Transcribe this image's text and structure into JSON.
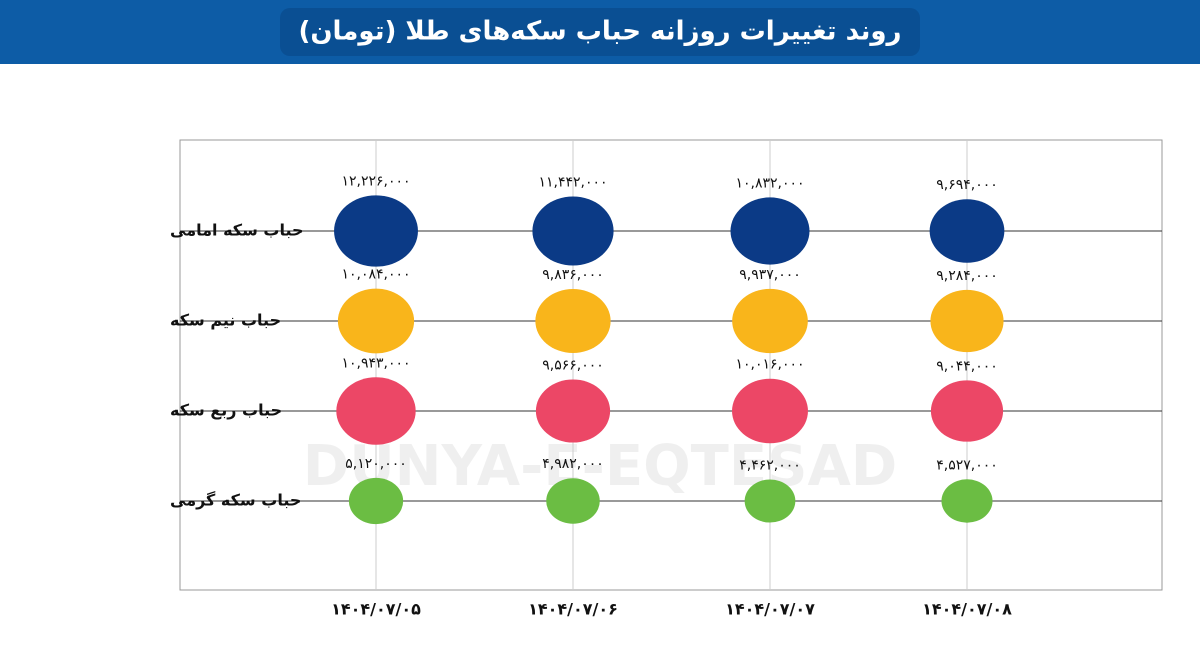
{
  "chart_data": {
    "type": "bubble",
    "title": "روند تغییرات روزانه حباب سکه‌های طلا (تومان)",
    "watermark": "DUNYA-E-EQTESAD",
    "categories": [
      "۱۴۰۴/۰۷/۰۵",
      "۱۴۰۴/۰۷/۰۶",
      "۱۴۰۴/۰۷/۰۷",
      "۱۴۰۴/۰۷/۰۸"
    ],
    "series": [
      {
        "name": "حباب سکه امامی",
        "color": "#0b3a86",
        "values": [
          12226000,
          11442000,
          10832000,
          9694000
        ],
        "value_labels": [
          "۱۲,۲۲۶,۰۰۰",
          "۱۱,۴۴۲,۰۰۰",
          "۱۰,۸۳۲,۰۰۰",
          "۹,۶۹۴,۰۰۰"
        ]
      },
      {
        "name": "حباب نیم سکه",
        "color": "#f9b51b",
        "values": [
          10084000,
          9836000,
          9937000,
          9284000
        ],
        "value_labels": [
          "۱۰,۰۸۴,۰۰۰",
          "۹,۸۳۶,۰۰۰",
          "۹,۹۳۷,۰۰۰",
          "۹,۲۸۴,۰۰۰"
        ]
      },
      {
        "name": "حباب ربع سکه",
        "color": "#ec4766",
        "values": [
          10943000,
          9566000,
          10016000,
          9044000
        ],
        "value_labels": [
          "۱۰,۹۴۳,۰۰۰",
          "۹,۵۶۶,۰۰۰",
          "۱۰,۰۱۶,۰۰۰",
          "۹,۰۴۴,۰۰۰"
        ]
      },
      {
        "name": "حباب سکه گرمی",
        "color": "#6bbd43",
        "values": [
          5120000,
          4982000,
          4462000,
          4527000
        ],
        "value_labels": [
          "۵,۱۲۰,۰۰۰",
          "۴,۹۸۲,۰۰۰",
          "۴,۴۶۲,۰۰۰",
          "۴,۵۲۷,۰۰۰"
        ]
      }
    ]
  }
}
